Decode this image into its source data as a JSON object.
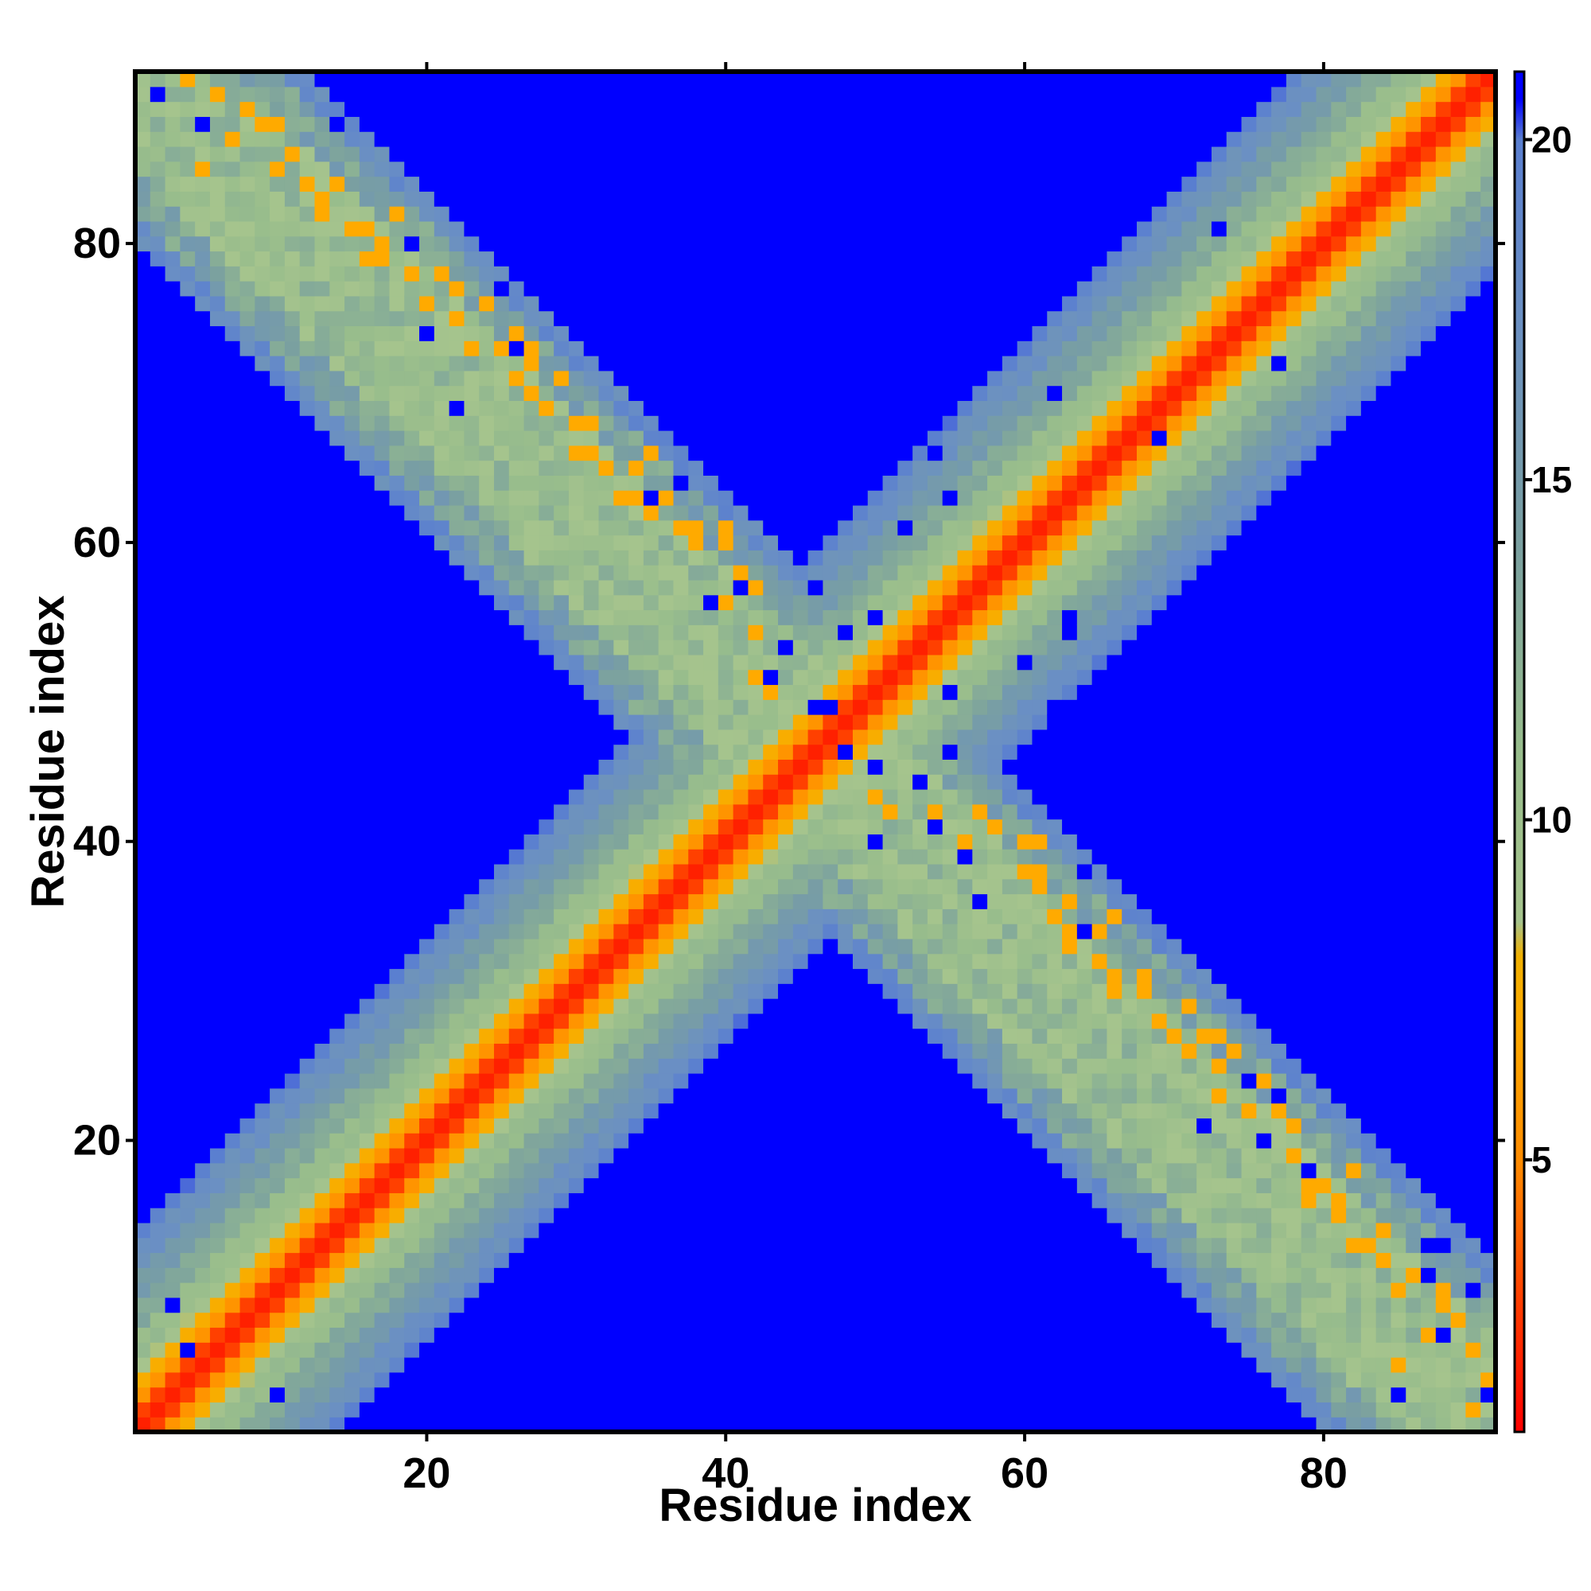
{
  "chart_data": {
    "type": "heatmap",
    "title": "",
    "xlabel": "Residue index",
    "ylabel": "Residue index",
    "n": 91,
    "xlim": [
      0.5,
      91.5
    ],
    "ylim": [
      0.5,
      91.5
    ],
    "xticks": [
      20,
      40,
      60,
      80
    ],
    "yticks": [
      20,
      40,
      60,
      80
    ],
    "colorbar": {
      "ticks": [
        5,
        10,
        15,
        20
      ],
      "range": [
        1.0,
        21.0
      ],
      "no_contact_value": 21,
      "scale": [
        {
          "value": 1.0,
          "color": "#ff0000"
        },
        {
          "value": 3.0,
          "color": "#ff4000"
        },
        {
          "value": 5.0,
          "color": "#ff8c00"
        },
        {
          "value": 7.0,
          "color": "#ffaa00"
        },
        {
          "value": 8.0,
          "color": "#f0b000"
        },
        {
          "value": 8.5,
          "color": "#a6c48d"
        },
        {
          "value": 11.0,
          "color": "#98bd8c"
        },
        {
          "value": 14.0,
          "color": "#7aa0a0"
        },
        {
          "value": 17.5,
          "color": "#6a8fc4"
        },
        {
          "value": 20.0,
          "color": "#5a7fd0"
        },
        {
          "value": 20.6,
          "color": "#0000ff"
        },
        {
          "value": 21.0,
          "color": "#0000ff"
        }
      ]
    },
    "matrix_pattern": {
      "description_free": true,
      "diagonal_band": [
        {
          "max_offset": 0,
          "value": 2
        },
        {
          "max_offset": 1,
          "value": 3
        },
        {
          "max_offset": 2,
          "value": 5.5
        },
        {
          "max_offset": 3,
          "value": 7.5
        },
        {
          "max_offset": 4,
          "value": 9
        },
        {
          "max_offset": 6,
          "value": 11
        },
        {
          "max_offset": 8,
          "value": 13
        },
        {
          "max_offset": 10,
          "value": 15
        },
        {
          "max_offset": 12,
          "value": 17
        },
        {
          "max_offset": 13,
          "value": 19.5
        }
      ],
      "antidiagonal_band": {
        "sum": 92,
        "core_value": 10.5,
        "core_offset": 6,
        "mid_value": 14,
        "mid_offset": 9,
        "edge_value": 18,
        "edge_offset": 11,
        "x_min": 1,
        "x_max": 91
      },
      "antidiagonal_orange_cells": [
        [
          2,
          90
        ],
        [
          6,
          90
        ],
        [
          10,
          88
        ],
        [
          10,
          85
        ],
        [
          11,
          86
        ],
        [
          13,
          83
        ],
        [
          14,
          84
        ],
        [
          16,
          81
        ],
        [
          17,
          80
        ],
        [
          18,
          82
        ],
        [
          21,
          78
        ],
        [
          22,
          77
        ],
        [
          24,
          76
        ],
        [
          26,
          74
        ],
        [
          27,
          73
        ],
        [
          27,
          72
        ],
        [
          29,
          71
        ],
        [
          30,
          68
        ],
        [
          31,
          68
        ],
        [
          34,
          65
        ],
        [
          35,
          66
        ],
        [
          36,
          63
        ],
        [
          37,
          61
        ],
        [
          38,
          60
        ],
        [
          40,
          61
        ],
        [
          41,
          58
        ],
        [
          42,
          57
        ],
        [
          50,
          43
        ],
        [
          51,
          42
        ],
        [
          54,
          42
        ],
        [
          56,
          40
        ],
        [
          58,
          41
        ],
        [
          60,
          40
        ],
        [
          61,
          38
        ],
        [
          62,
          35
        ],
        [
          63,
          34
        ],
        [
          63,
          33
        ],
        [
          65,
          32
        ],
        [
          66,
          31
        ],
        [
          66,
          30
        ],
        [
          69,
          28
        ],
        [
          70,
          27
        ],
        [
          71,
          26
        ],
        [
          73,
          25
        ],
        [
          73,
          23
        ],
        [
          75,
          22
        ],
        [
          76,
          20
        ],
        [
          78,
          19
        ],
        [
          79,
          17
        ],
        [
          79,
          16
        ],
        [
          81,
          15
        ],
        [
          82,
          13
        ],
        [
          84,
          12
        ],
        [
          86,
          11
        ],
        [
          88,
          9
        ],
        [
          89,
          8
        ],
        [
          90,
          6
        ],
        [
          91,
          4
        ],
        [
          85,
          5
        ],
        [
          87,
          7
        ]
      ],
      "antidiagonal_blue_cells": [
        [
          2,
          90
        ],
        [
          5,
          88
        ],
        [
          14,
          88
        ],
        [
          19,
          86
        ],
        [
          19,
          80
        ],
        [
          25,
          77
        ],
        [
          28,
          76
        ],
        [
          20,
          74
        ],
        [
          26,
          73
        ],
        [
          22,
          69
        ],
        [
          34,
          70
        ],
        [
          37,
          64
        ],
        [
          35,
          63
        ],
        [
          43,
          64
        ],
        [
          41,
          57
        ],
        [
          46,
          57
        ],
        [
          44,
          53
        ],
        [
          48,
          54
        ],
        [
          50,
          55
        ],
        [
          39,
          56
        ],
        [
          47,
          49
        ],
        [
          43,
          51
        ],
        [
          54,
          66
        ],
        [
          55,
          50
        ],
        [
          60,
          52
        ],
        [
          63,
          54
        ],
        [
          67,
          48
        ],
        [
          64,
          38
        ],
        [
          53,
          44
        ],
        [
          50,
          40
        ],
        [
          54,
          41
        ],
        [
          56,
          39
        ],
        [
          55,
          46
        ],
        [
          67,
          42
        ],
        [
          71,
          38
        ],
        [
          64,
          34
        ],
        [
          57,
          36
        ],
        [
          75,
          24
        ],
        [
          72,
          21
        ],
        [
          77,
          23
        ],
        [
          76,
          20
        ],
        [
          79,
          18
        ],
        [
          87,
          13
        ],
        [
          88,
          13
        ],
        [
          87,
          11
        ],
        [
          90,
          10
        ],
        [
          88,
          7
        ],
        [
          85,
          3
        ],
        [
          91,
          3
        ],
        [
          50,
          45
        ],
        [
          48,
          46
        ],
        [
          46,
          49
        ],
        [
          62,
          49
        ]
      ],
      "diagonal_blue_cells": [
        [
          3,
          9
        ],
        [
          4,
          6
        ],
        [
          10,
          3
        ],
        [
          73,
          81
        ],
        [
          77,
          72
        ],
        [
          62,
          70
        ],
        [
          69,
          67
        ],
        [
          55,
          63
        ],
        [
          52,
          61
        ],
        [
          63,
          55
        ]
      ]
    }
  }
}
